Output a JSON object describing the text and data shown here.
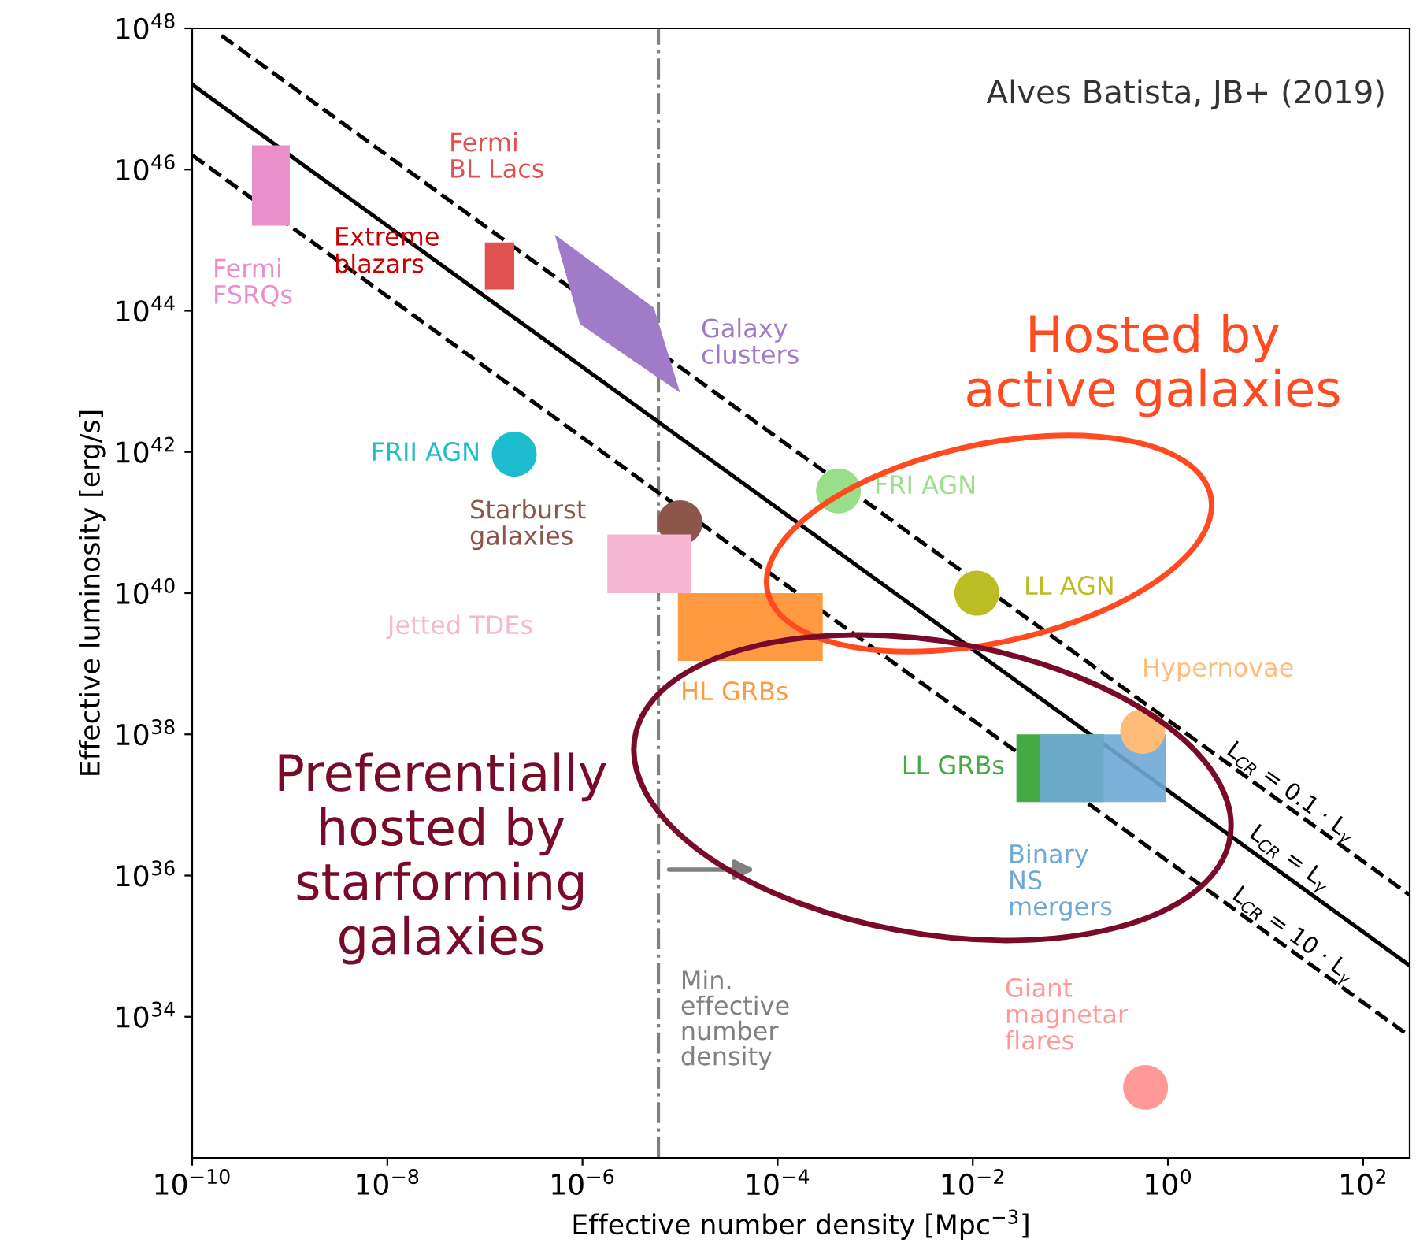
{
  "chart_data": {
    "type": "scatter",
    "xlabel": "Effective number density [Mpc$^{−3}$]",
    "ylabel": "Effective luminosity [erg/s]",
    "log": "xy",
    "grid": false,
    "legend": false,
    "xlim": [
      1e-10,
      300
    ],
    "ylim": [
      1e+32,
      1e+48
    ],
    "xticks": [
      {
        "value": 1e-10,
        "label": "10$^{−10}$"
      },
      {
        "value": 1e-08,
        "label": "10$^{−8}$"
      },
      {
        "value": 1e-06,
        "label": "10$^{−6}$"
      },
      {
        "value": 0.0001,
        "label": "10$^{−4}$"
      },
      {
        "value": 0.01,
        "label": "10$^{−2}$"
      },
      {
        "value": 1,
        "label": "10$^{0}$"
      },
      {
        "value": 100,
        "label": "10$^{2}$"
      }
    ],
    "yticks": [
      {
        "value": 1e+34,
        "label": "10$^{34}$"
      },
      {
        "value": 1e+36,
        "label": "10$^{36}$"
      },
      {
        "value": 1e+38,
        "label": "10$^{38}$"
      },
      {
        "value": 1e+40,
        "label": "10$^{40}$"
      },
      {
        "value": 1e+42,
        "label": "10$^{42}$"
      },
      {
        "value": 1e+44,
        "label": "10$^{44}$"
      },
      {
        "value": 1e+46,
        "label": "10$^{46}$"
      },
      {
        "value": 1e+48,
        "label": "10$^{48}$"
      }
    ],
    "series": [
      {
        "type": "line",
        "line_style": "dashed",
        "color": "#000000",
        "x": [
          2e-10,
          300
        ],
        "values": [
          7.9e+47,
          5.3e+35
        ]
      },
      {
        "type": "line",
        "line_style": "solid",
        "color": "#000000",
        "x": [
          1e-10,
          300
        ],
        "values": [
          1.6e+47,
          5.3e+34
        ]
      },
      {
        "type": "line",
        "line_style": "dashed",
        "color": "#000000",
        "x": [
          1e-10,
          300
        ],
        "values": [
          1.6e+46,
          5.3e+33
        ]
      },
      {
        "type": "area",
        "name": "Fermi\nFSRQs",
        "color": "#e98fcb",
        "x": [
          4.1e-10,
          1e-09,
          1e-09,
          4.1e-10
        ],
        "values": [
          2.2e+46,
          2.2e+46,
          1.6e+45,
          1.6e+45
        ]
      },
      {
        "type": "area",
        "name": "Fermi\nBL Lacs",
        "color": "#e05252",
        "x": [
          1e-07,
          2e-07,
          2e-07,
          1e-07
        ],
        "values": [
          9.3e+44,
          9.3e+44,
          2e+44,
          2e+44
        ]
      },
      {
        "type": "area",
        "name": "Galaxy\nclusters",
        "color": "#a07cc8",
        "x": [
          5.2e-07,
          5.4e-06,
          1e-05,
          9.4e-07
        ],
        "values": [
          1.2e+45,
          1.1e+44,
          6.9e+42,
          6.5e+43
        ]
      },
      {
        "type": "area",
        "name": "Jetted TDEs",
        "color": "#f7b6d2",
        "x": [
          1.8e-06,
          1.3e-05,
          1.3e-05,
          1.8e-06
        ],
        "values": [
          6.8e+40,
          6.8e+40,
          1e+40,
          1e+40
        ]
      },
      {
        "type": "area",
        "name": "HL GRBs",
        "color": "#ff9a40",
        "x": [
          9.5e-06,
          0.00029,
          0.00029,
          9.5e-06
        ],
        "values": [
          1e+40,
          1e+40,
          1.1e+39,
          1.1e+39
        ]
      },
      {
        "type": "area",
        "name": "LL GRBs",
        "color": "#44aa44",
        "x": [
          0.028,
          0.22,
          0.22,
          0.028
        ],
        "values": [
          1e+38,
          1e+38,
          1.1e+37,
          1.1e+37
        ]
      },
      {
        "type": "area",
        "name": "Binary\nNS\nmergers",
        "color": "#6fa8d6",
        "x": [
          0.049,
          0.96,
          0.96,
          0.049
        ],
        "values": [
          1e+38,
          1e+38,
          1.1e+37,
          1.1e+37
        ]
      },
      {
        "name": "FRII AGN",
        "color": "#1bbccc",
        "marker": "circle",
        "x": [
          2e-07
        ],
        "values": [
          9.3e+41
        ]
      },
      {
        "name": "Starburst\ngalaxies",
        "color": "#8c564b",
        "marker": "circle",
        "x": [
          1e-05
        ],
        "values": [
          1e+41
        ]
      },
      {
        "name": "FRI AGN",
        "color": "#98df8a",
        "marker": "circle",
        "x": [
          0.00042
        ],
        "values": [
          2.8e+41
        ]
      },
      {
        "name": "LL AGN",
        "color": "#bcbd22",
        "marker": "circle",
        "x": [
          0.011
        ],
        "values": [
          1e+40
        ]
      },
      {
        "name": "Hypernovae",
        "color": "#ffbb78",
        "marker": "circle",
        "x": [
          0.55
        ],
        "values": [
          1.1e+38
        ]
      },
      {
        "name": "Giant\nmagnetar\nflares",
        "color": "#ff9896",
        "marker": "circle",
        "x": [
          0.59
        ],
        "values": [
          1e+33
        ]
      }
    ],
    "ref_lines": [
      {
        "axis": "x",
        "value": 6e-06,
        "label": "Min.\neffective\nnumber\ndensity",
        "color": "#808080",
        "line_style": "dashdot"
      }
    ],
    "annotations": [
      {
        "text": "L$_{CR}$ = 0.1 · L$_{γ}$",
        "x": 3.5,
        "y": 4.5e+37
      },
      {
        "text": "L$_{CR}$ = L$_{γ}$",
        "x": 6,
        "y": 3e+36
      },
      {
        "text": "L$_{CR}$ = 10 · L$_{γ}$",
        "x": 4,
        "y": 4e+35
      },
      "Extreme\nblazars",
      "Hosted by\nactive galaxies",
      "Preferentially\nhosted by\nstarforming\ngalaxies",
      "Alves Batista, JB+ (2019)"
    ]
  }
}
